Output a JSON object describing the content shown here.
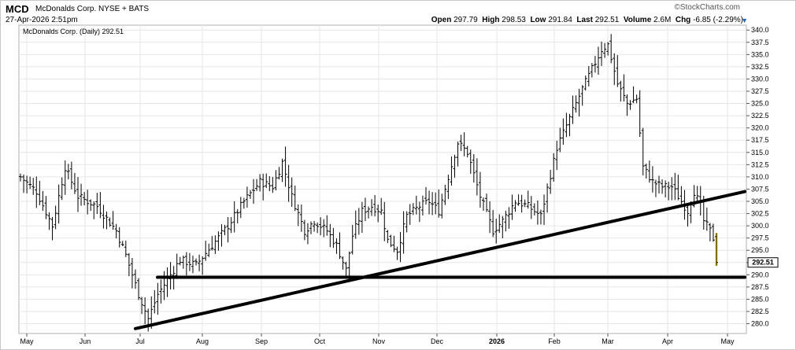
{
  "header": {
    "symbol": "MCD",
    "company": "McDonalds Corp. NYSE + BATS",
    "timestamp": "27-Apr-2026 2:51pm",
    "brand": "©StockCharts.com",
    "open_label": "Open",
    "open": "297.79",
    "high_label": "High",
    "high": "298.53",
    "low_label": "Low",
    "low": "291.84",
    "last_label": "Last",
    "last": "292.51",
    "volume_label": "Volume",
    "volume": "2.6M",
    "chg_label": "Chg",
    "chg": "-6.85 (-2.29%)",
    "chg_arrow": "▼"
  },
  "chart_data": {
    "type": "ohlc",
    "title": "McDonalds Corp. (Daily) 292.51",
    "last_value_label": "292.51",
    "x_tick_labels": [
      "May",
      "Jun",
      "Jul",
      "Aug",
      "Sep",
      "Oct",
      "Nov",
      "Dec",
      "2026",
      "Feb",
      "Mar",
      "Apr",
      "May"
    ],
    "y_tick_labels": [
      "340.0",
      "337.5",
      "335.0",
      "332.5",
      "330.0",
      "327.5",
      "325.0",
      "322.5",
      "320.0",
      "317.5",
      "315.0",
      "312.5",
      "310.0",
      "307.5",
      "305.0",
      "302.5",
      "300.0",
      "297.5",
      "295.0",
      "292.5",
      "290.0",
      "287.5",
      "285.0",
      "282.5",
      "280.0"
    ],
    "ylim": [
      278.0,
      341.0
    ],
    "grid": true,
    "highlight_color": "#f5e400",
    "anchors": [
      [
        0,
        310
      ],
      [
        5,
        307
      ],
      [
        10,
        300
      ],
      [
        14,
        312
      ],
      [
        18,
        306
      ],
      [
        24,
        304
      ],
      [
        30,
        299
      ],
      [
        33,
        294
      ],
      [
        37,
        286
      ],
      [
        40,
        281
      ],
      [
        43,
        286
      ],
      [
        46,
        289
      ],
      [
        50,
        293
      ],
      [
        55,
        292
      ],
      [
        60,
        296
      ],
      [
        65,
        300
      ],
      [
        70,
        305
      ],
      [
        75,
        309
      ],
      [
        79,
        308
      ],
      [
        82,
        313
      ],
      [
        85,
        306
      ],
      [
        89,
        299
      ],
      [
        92,
        301
      ],
      [
        96,
        299
      ],
      [
        99,
        296
      ],
      [
        102,
        291
      ],
      [
        104,
        298
      ],
      [
        107,
        303
      ],
      [
        110,
        304
      ],
      [
        113,
        303
      ],
      [
        115,
        297
      ],
      [
        118,
        295
      ],
      [
        121,
        302
      ],
      [
        125,
        304
      ],
      [
        128,
        305
      ],
      [
        131,
        303
      ],
      [
        134,
        310
      ],
      [
        137,
        317
      ],
      [
        140,
        315
      ],
      [
        144,
        306
      ],
      [
        148,
        299
      ],
      [
        151,
        301
      ],
      [
        155,
        305
      ],
      [
        159,
        304
      ],
      [
        163,
        302
      ],
      [
        168,
        316
      ],
      [
        172,
        322
      ],
      [
        176,
        328
      ],
      [
        179,
        332
      ],
      [
        182,
        336
      ],
      [
        184,
        337
      ],
      [
        187,
        329
      ],
      [
        190,
        325
      ],
      [
        193,
        326
      ],
      [
        195,
        312
      ],
      [
        198,
        309
      ],
      [
        201,
        308
      ],
      [
        204,
        308
      ],
      [
        207,
        305
      ],
      [
        209,
        303
      ],
      [
        211,
        307
      ],
      [
        213,
        304
      ],
      [
        214,
        301
      ],
      [
        216,
        299
      ],
      [
        217,
        297.5
      ],
      [
        218,
        292.51
      ]
    ],
    "series": [
      {
        "name": "Support line",
        "points": [
          [
            "Jul",
            279
          ],
          [
            "May",
            307
          ]
        ]
      },
      {
        "name": "Horizontal line",
        "points": [
          [
            "Jul",
            289.5
          ],
          [
            "May",
            289.5
          ]
        ]
      }
    ]
  }
}
